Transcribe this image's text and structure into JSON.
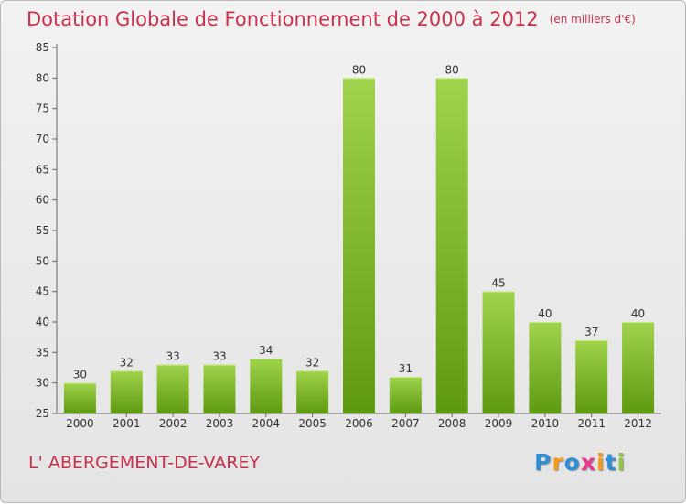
{
  "header": {
    "title": "Dotation Globale de Fonctionnement de 2000 à 2012",
    "unit": "(en milliers d'€)"
  },
  "footer": {
    "commune": "L' ABERGEMENT-DE-VAREY",
    "logo_letters": [
      "P",
      "r",
      "o",
      "x",
      "i",
      "t",
      "i"
    ],
    "logo_colors": [
      "#2f8fd6",
      "#f39a1b",
      "#2f8fd6",
      "#e83a8a",
      "#f39a1b",
      "#2f8fd6",
      "#8dc63f"
    ]
  },
  "chart_data": {
    "type": "bar",
    "categories": [
      "2000",
      "2001",
      "2002",
      "2003",
      "2004",
      "2005",
      "2006",
      "2007",
      "2008",
      "2009",
      "2010",
      "2011",
      "2012"
    ],
    "values": [
      30,
      32,
      33,
      33,
      34,
      32,
      80,
      31,
      80,
      45,
      40,
      37,
      40
    ],
    "title": "Dotation Globale de Fonctionnement de 2000 à 2012",
    "ylim": [
      25,
      85
    ],
    "yticks": [
      25,
      30,
      35,
      40,
      45,
      50,
      55,
      60,
      65,
      70,
      75,
      80,
      85
    ],
    "grid": false,
    "bar_color_top": "#9fd34b",
    "bar_color_bottom": "#5e9a10"
  }
}
